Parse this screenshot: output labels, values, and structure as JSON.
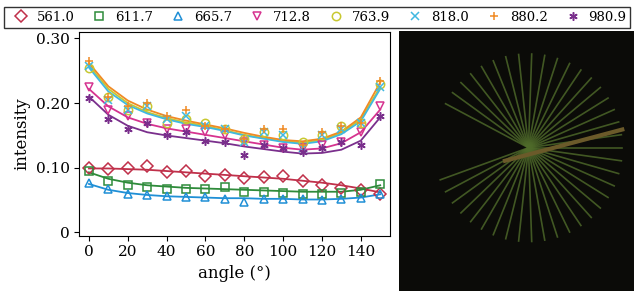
{
  "chart_data": {
    "type": "scatter",
    "x_label": "angle (°)",
    "y_label": "intensity",
    "x": [
      0,
      10,
      20,
      30,
      40,
      50,
      60,
      70,
      80,
      90,
      100,
      110,
      120,
      130,
      140,
      150
    ],
    "xlim": [
      -5,
      155
    ],
    "xticks": [
      0,
      20,
      40,
      60,
      80,
      100,
      120,
      140
    ],
    "ylim": [
      -0.005,
      0.31
    ],
    "yticks": [
      0,
      {
        "value": 0.1,
        "label": "0.10"
      },
      {
        "value": 0.2,
        "label": "0.20"
      },
      {
        "value": 0.3,
        "label": "0.30"
      }
    ],
    "legend": "top",
    "series": [
      {
        "name": "561.0",
        "color": "#c0304a",
        "marker": "diamond",
        "values": [
          0.1,
          0.098,
          0.1,
          0.103,
          0.094,
          0.095,
          0.088,
          0.089,
          0.085,
          0.086,
          0.088,
          0.08,
          0.074,
          0.069,
          0.065,
          0.06
        ],
        "fit": [
          0.099,
          0.099,
          0.098,
          0.097,
          0.095,
          0.093,
          0.091,
          0.089,
          0.087,
          0.085,
          0.083,
          0.08,
          0.077,
          0.073,
          0.068,
          0.062
        ]
      },
      {
        "name": "611.7",
        "color": "#2e8b3a",
        "marker": "square",
        "values": [
          0.095,
          0.08,
          0.074,
          0.071,
          0.067,
          0.068,
          0.068,
          0.07,
          0.062,
          0.063,
          0.061,
          0.06,
          0.06,
          0.061,
          0.062,
          0.075
        ],
        "fit": [
          0.093,
          0.083,
          0.077,
          0.073,
          0.071,
          0.069,
          0.068,
          0.067,
          0.066,
          0.065,
          0.064,
          0.063,
          0.063,
          0.063,
          0.066,
          0.073
        ]
      },
      {
        "name": "665.7",
        "color": "#1f8fd6",
        "marker": "triangle_up",
        "values": [
          0.077,
          0.067,
          0.06,
          0.058,
          0.057,
          0.055,
          0.055,
          0.052,
          0.047,
          0.052,
          0.052,
          0.052,
          0.05,
          0.052,
          0.054,
          0.06
        ],
        "fit": [
          0.075,
          0.066,
          0.061,
          0.058,
          0.056,
          0.055,
          0.054,
          0.053,
          0.053,
          0.052,
          0.052,
          0.051,
          0.051,
          0.052,
          0.054,
          0.059
        ]
      },
      {
        "name": "712.8",
        "color": "#d6338f",
        "marker": "triangle_down",
        "values": [
          0.225,
          0.19,
          0.18,
          0.17,
          0.16,
          0.16,
          0.155,
          0.15,
          0.14,
          0.135,
          0.13,
          0.13,
          0.135,
          0.14,
          0.155,
          0.195
        ],
        "fit": [
          0.222,
          0.195,
          0.178,
          0.168,
          0.161,
          0.156,
          0.151,
          0.146,
          0.141,
          0.136,
          0.131,
          0.128,
          0.13,
          0.138,
          0.155,
          0.19
        ]
      },
      {
        "name": "763.9",
        "color": "#c8c830",
        "marker": "circle",
        "values": [
          0.255,
          0.21,
          0.19,
          0.195,
          0.17,
          0.175,
          0.17,
          0.16,
          0.145,
          0.155,
          0.15,
          0.14,
          0.15,
          0.165,
          0.17,
          0.23
        ],
        "fit": [
          0.258,
          0.222,
          0.2,
          0.186,
          0.177,
          0.17,
          0.165,
          0.158,
          0.151,
          0.146,
          0.141,
          0.139,
          0.143,
          0.154,
          0.175,
          0.225
        ]
      },
      {
        "name": "818.0",
        "color": "#40b8e0",
        "marker": "x",
        "values": [
          0.258,
          0.205,
          0.19,
          0.195,
          0.175,
          0.18,
          0.165,
          0.16,
          0.14,
          0.155,
          0.15,
          0.13,
          0.15,
          0.16,
          0.17,
          0.225
        ],
        "fit": [
          0.255,
          0.218,
          0.197,
          0.184,
          0.175,
          0.168,
          0.163,
          0.157,
          0.15,
          0.145,
          0.14,
          0.137,
          0.141,
          0.152,
          0.172,
          0.222
        ]
      },
      {
        "name": "880.2",
        "color": "#f08a24",
        "marker": "plus",
        "values": [
          0.265,
          0.21,
          0.195,
          0.2,
          0.18,
          0.19,
          0.165,
          0.16,
          0.145,
          0.16,
          0.16,
          0.135,
          0.155,
          0.165,
          0.17,
          0.235
        ],
        "fit": [
          0.262,
          0.226,
          0.204,
          0.19,
          0.18,
          0.173,
          0.167,
          0.161,
          0.154,
          0.148,
          0.143,
          0.141,
          0.145,
          0.156,
          0.178,
          0.232
        ]
      },
      {
        "name": "980.9",
        "color": "#7a2f8c",
        "marker": "asterisk",
        "values": [
          0.208,
          0.175,
          0.16,
          0.17,
          0.15,
          0.155,
          0.142,
          0.14,
          0.12,
          0.135,
          0.13,
          0.125,
          0.13,
          0.14,
          0.135,
          0.18
        ],
        "fit": [
          0.21,
          0.182,
          0.165,
          0.155,
          0.15,
          0.146,
          0.142,
          0.138,
          0.133,
          0.129,
          0.125,
          0.122,
          0.123,
          0.128,
          0.142,
          0.178
        ]
      }
    ]
  }
}
